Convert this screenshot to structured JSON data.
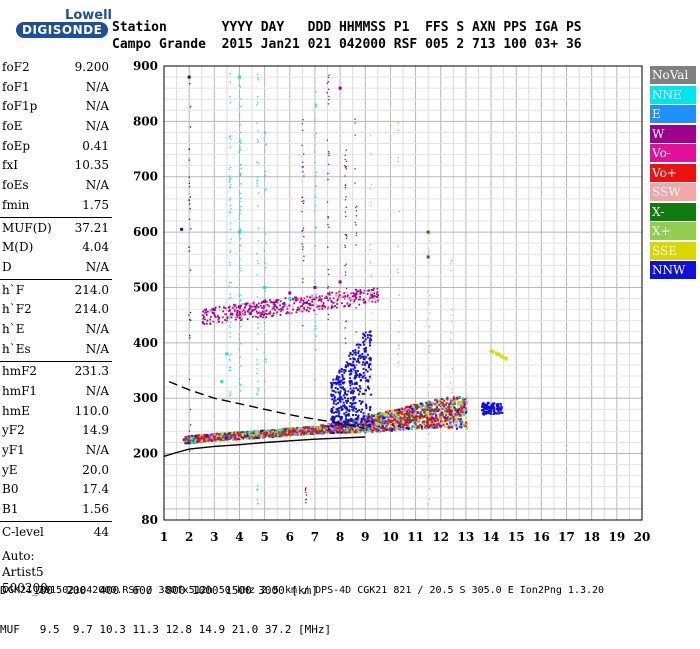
{
  "logo": {
    "line1": "Lowell",
    "line2": "DIGISONDE"
  },
  "header": {
    "labels": "Station       YYYY DAY   DDD HHMMSS P1  FFS S AXN PPS IGA PS",
    "values": "Campo Grande  2015 Jan21 021 042000 RSF 005 2 713 100 03+ 36"
  },
  "params": [
    {
      "label": "foF2",
      "value": "9.200"
    },
    {
      "label": "foF1",
      "value": "N/A"
    },
    {
      "label": "foF1p",
      "value": "N/A"
    },
    {
      "label": "foE",
      "value": "N/A"
    },
    {
      "label": "foEp",
      "value": "0.41"
    },
    {
      "label": "fxI",
      "value": "10.35"
    },
    {
      "label": "foEs",
      "value": "N/A"
    },
    {
      "label": "fmin",
      "value": "1.75"
    },
    {
      "label": "MUF(D)",
      "value": "37.21"
    },
    {
      "label": "M(D)",
      "value": "4.04"
    },
    {
      "label": "D",
      "value": "N/A"
    },
    {
      "label": "h`F",
      "value": "214.0"
    },
    {
      "label": "h`F2",
      "value": "214.0"
    },
    {
      "label": "h`E",
      "value": "N/A"
    },
    {
      "label": "h`Es",
      "value": "N/A"
    },
    {
      "label": "hmF2",
      "value": "231.3"
    },
    {
      "label": "hmF1",
      "value": "N/A"
    },
    {
      "label": "hmE",
      "value": "110.0"
    },
    {
      "label": "yF2",
      "value": "14.9"
    },
    {
      "label": "yF1",
      "value": "N/A"
    },
    {
      "label": "yE",
      "value": "20.0"
    },
    {
      "label": "B0",
      "value": "17.4"
    },
    {
      "label": "B1",
      "value": "1.56"
    },
    {
      "label": "C-level",
      "value": "44"
    }
  ],
  "auto": [
    "Auto:",
    "Artist5",
    "500200"
  ],
  "legend": [
    {
      "label": "NoVal",
      "color": "#808080"
    },
    {
      "label": "NNE",
      "color": "#00e5ee"
    },
    {
      "label": "E",
      "color": "#1e90ff"
    },
    {
      "label": "W",
      "color": "#a0008c"
    },
    {
      "label": "Vo-",
      "color": "#e0109a"
    },
    {
      "label": "Vo+",
      "color": "#ee1111"
    },
    {
      "label": "SSW",
      "color": "#f2a6a6"
    },
    {
      "label": "X-",
      "color": "#117a11"
    },
    {
      "label": "X+",
      "color": "#8fce4f"
    },
    {
      "label": "SSE",
      "color": "#d8d800"
    },
    {
      "label": "NNW",
      "color": "#1010d8"
    }
  ],
  "bottom": {
    "d_line": "D    100  200  400  600  800 1000 1500 3000 [km]",
    "muf_line": "MUF   9.5  9.7 10.3 11.3 12.8 14.9 21.0 37.2 [MHz]"
  },
  "footer": "CGK21_2015021042000.RSF / 380fx512h 50 kHz 2.5 km / DPS-4D CGK21 821 / 20.5 S 305.0 E Ion2Png 1.3.20",
  "chart_data": {
    "type": "scatter",
    "xlim": [
      1,
      20
    ],
    "ylim": [
      80,
      900
    ],
    "xticks": [
      1,
      2,
      3,
      4,
      5,
      6,
      7,
      8,
      9,
      10,
      11,
      12,
      13,
      14,
      15,
      16,
      17,
      18,
      19,
      20
    ],
    "yticks": [
      80,
      200,
      300,
      400,
      500,
      600,
      700,
      800,
      900
    ],
    "grid": true,
    "legend_position": "right",
    "series": [
      {
        "name": "Vo+",
        "points": [
          [
            1.8,
            225
          ],
          [
            2.5,
            228
          ],
          [
            3,
            230
          ],
          [
            4,
            233
          ],
          [
            5,
            236
          ],
          [
            6,
            240
          ],
          [
            7,
            243
          ],
          [
            8,
            248
          ],
          [
            9,
            252
          ],
          [
            10,
            258
          ],
          [
            11,
            264
          ],
          [
            12,
            270
          ]
        ]
      },
      {
        "name": "NNW",
        "points": [
          [
            8,
            330
          ],
          [
            8.5,
            360
          ],
          [
            9,
            385
          ],
          [
            13.8,
            285
          ],
          [
            14,
            280
          ],
          [
            14.3,
            282
          ],
          [
            1.7,
            605
          ],
          [
            2,
            880
          ]
        ]
      },
      {
        "name": "NNE",
        "points": [
          [
            3.3,
            330
          ],
          [
            3.5,
            380
          ],
          [
            4,
            600
          ],
          [
            4,
            880
          ],
          [
            5,
            500
          ],
          [
            6,
            480
          ]
        ]
      },
      {
        "name": "W",
        "points": [
          [
            3,
            460
          ],
          [
            4,
            465
          ],
          [
            5,
            475
          ],
          [
            6,
            490
          ],
          [
            7,
            500
          ],
          [
            8,
            510
          ],
          [
            8,
            860
          ]
        ]
      },
      {
        "name": "SSE",
        "points": [
          [
            14,
            385
          ],
          [
            14.3,
            380
          ],
          [
            14.6,
            372
          ]
        ]
      },
      {
        "name": "X-",
        "points": [
          [
            11.5,
            555
          ],
          [
            11.5,
            600
          ]
        ]
      }
    ],
    "traces": [
      {
        "style": "dashed",
        "points": [
          [
            1.2,
            330
          ],
          [
            2,
            315
          ],
          [
            3,
            300
          ],
          [
            4,
            290
          ],
          [
            5,
            280
          ],
          [
            6,
            270
          ],
          [
            7,
            262
          ],
          [
            8,
            255
          ],
          [
            9,
            245
          ]
        ]
      },
      {
        "style": "solid",
        "points": [
          [
            1,
            195
          ],
          [
            1.5,
            202
          ],
          [
            2,
            208
          ],
          [
            3,
            213
          ],
          [
            4,
            216
          ],
          [
            5,
            220
          ],
          [
            6,
            223
          ],
          [
            7,
            226
          ],
          [
            8,
            228
          ],
          [
            9,
            230
          ]
        ]
      }
    ]
  }
}
